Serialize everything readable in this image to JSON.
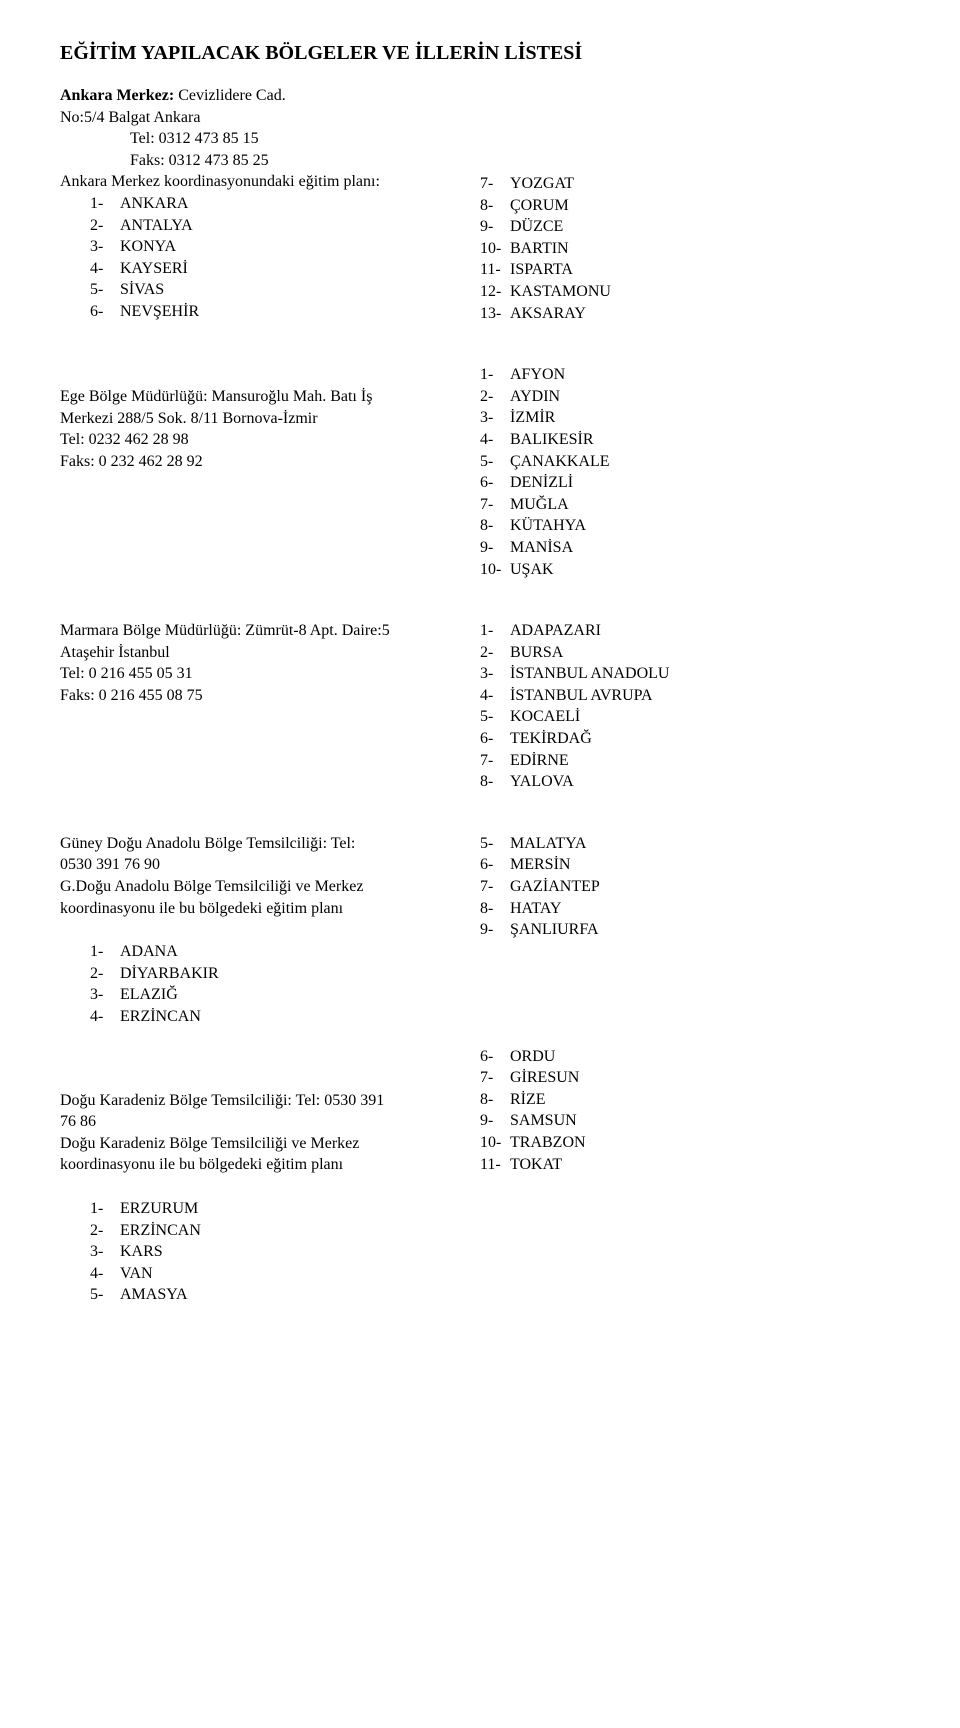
{
  "title": "EĞİTİM YAPILACAK BÖLGELER VE İLLERİN LİSTESİ",
  "ankara": {
    "hdr_bold": "Ankara Merkez:",
    "hdr_rest": " Cevizlidere Cad.",
    "line2": "No:5/4 Balgat Ankara",
    "tel": "Tel: 0312 473 85 15",
    "fax": "Faks: 0312 473 85 25",
    "plan": "Ankara Merkez koordinasyonundaki eğitim planı:",
    "left": [
      {
        "n": "1-",
        "t": "ANKARA"
      },
      {
        "n": "2-",
        "t": "ANTALYA"
      },
      {
        "n": "3-",
        "t": "KONYA"
      },
      {
        "n": "4-",
        "t": "KAYSERİ"
      },
      {
        "n": "5-",
        "t": "SİVAS"
      },
      {
        "n": "6-",
        "t": "NEVŞEHİR"
      }
    ],
    "right": [
      {
        "n": "7-",
        "t": "YOZGAT"
      },
      {
        "n": "8-",
        "t": "ÇORUM"
      },
      {
        "n": "9-",
        "t": "DÜZCE"
      },
      {
        "n": "10-",
        "t": "BARTIN"
      },
      {
        "n": "11-",
        "t": "ISPARTA"
      },
      {
        "n": "12-",
        "t": "KASTAMONU"
      },
      {
        "n": "13-",
        "t": "AKSARAY"
      }
    ]
  },
  "ege": {
    "l1": "Ege Bölge Müdürlüğü: Mansuroğlu Mah. Batı İş",
    "l2": "Merkezi 288/5 Sok. 8/11 Bornova-İzmir",
    "l3": "Tel: 0232 462 28 98",
    "l4": "Faks: 0 232 462 28 92",
    "right": [
      {
        "n": "1-",
        "t": "AFYON"
      },
      {
        "n": "2-",
        "t": "AYDIN"
      },
      {
        "n": "3-",
        "t": "İZMİR"
      },
      {
        "n": "4-",
        "t": "BALIKESİR"
      },
      {
        "n": "5-",
        "t": "ÇANAKKALE"
      },
      {
        "n": "6-",
        "t": "DENİZLİ"
      },
      {
        "n": "7-",
        "t": "MUĞLA"
      },
      {
        "n": "8-",
        "t": "KÜTAHYA"
      },
      {
        "n": "9-",
        "t": "MANİSA"
      },
      {
        "n": "10-",
        "t": "UŞAK"
      }
    ]
  },
  "marmara": {
    "l1": "Marmara Bölge Müdürlüğü: Zümrüt-8 Apt. Daire:5",
    "l2": "Ataşehir İstanbul",
    "l3": "Tel: 0 216 455 05 31",
    "l4": "Faks: 0 216 455 08 75",
    "right": [
      {
        "n": "1-",
        "t": "ADAPAZARI"
      },
      {
        "n": "2-",
        "t": "BURSA"
      },
      {
        "n": "3-",
        "t": "İSTANBUL ANADOLU"
      },
      {
        "n": "4-",
        "t": "İSTANBUL AVRUPA"
      },
      {
        "n": "5-",
        "t": "KOCAELİ"
      },
      {
        "n": "6-",
        "t": "TEKİRDAĞ"
      },
      {
        "n": "7-",
        "t": "EDİRNE"
      },
      {
        "n": "8-",
        "t": "YALOVA"
      }
    ]
  },
  "gda": {
    "l1": "Güney Doğu Anadolu Bölge Temsilciliği: Tel:",
    "l2": "0530 391 76 90",
    "l3": "G.Doğu Anadolu Bölge Temsilciliği ve Merkez",
    "l4": "koordinasyonu ile bu bölgedeki eğitim planı",
    "left": [
      {
        "n": "1-",
        "t": "ADANA"
      },
      {
        "n": "2-",
        "t": "DİYARBAKIR"
      },
      {
        "n": "3-",
        "t": "ELAZIĞ"
      },
      {
        "n": "4-",
        "t": "ERZİNCAN"
      }
    ],
    "right": [
      {
        "n": "5-",
        "t": "MALATYA"
      },
      {
        "n": "6-",
        "t": "MERSİN"
      },
      {
        "n": "7-",
        "t": "GAZİANTEP"
      },
      {
        "n": "8-",
        "t": "HATAY"
      },
      {
        "n": "9-",
        "t": "ŞANLIURFA"
      }
    ]
  },
  "dk": {
    "l1": "Doğu Karadeniz Bölge Temsilciliği: Tel: 0530 391",
    "l2": "76 86",
    "l3": "Doğu Karadeniz Bölge Temsilciliği ve Merkez",
    "l4": "koordinasyonu ile bu bölgedeki eğitim planı",
    "right": [
      {
        "n": "6-",
        "t": "ORDU"
      },
      {
        "n": "7-",
        "t": "GİRESUN"
      },
      {
        "n": "8-",
        "t": "RİZE"
      },
      {
        "n": "9-",
        "t": "SAMSUN"
      },
      {
        "n": "10-",
        "t": "TRABZON"
      },
      {
        "n": "11-",
        "t": "TOKAT"
      }
    ],
    "left": [
      {
        "n": "1-",
        "t": "ERZURUM"
      },
      {
        "n": "2-",
        "t": "ERZİNCAN"
      },
      {
        "n": "3-",
        "t": "KARS"
      },
      {
        "n": "4-",
        "t": "VAN"
      },
      {
        "n": "5-",
        "t": "AMASYA"
      }
    ]
  }
}
